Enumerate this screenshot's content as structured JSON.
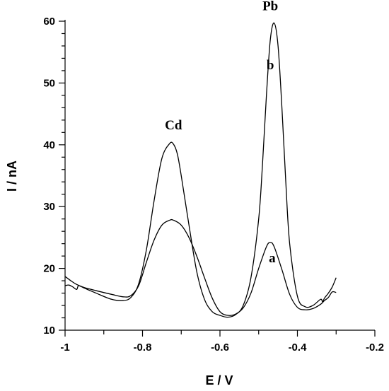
{
  "chart_data": {
    "type": "line",
    "xlabel": "E / V",
    "ylabel": "I / nA",
    "xlim": [
      -1.0,
      -0.2
    ],
    "ylim": [
      10,
      60
    ],
    "xticks": [
      -1.0,
      -0.8,
      -0.6,
      -0.4,
      -0.2
    ],
    "xtick_labels": [
      "-1",
      "-0.8",
      "-0.6",
      "-0.4",
      "-0.2"
    ],
    "yticks": [
      10,
      20,
      30,
      40,
      50,
      60
    ],
    "ytick_labels": [
      "10",
      "20",
      "30",
      "40",
      "50",
      "60"
    ],
    "grid": false,
    "series": [
      {
        "name": "a",
        "x": [
          -1.0,
          -0.985,
          -0.97,
          -0.95,
          -0.92,
          -0.88,
          -0.85,
          -0.83,
          -0.81,
          -0.79,
          -0.77,
          -0.75,
          -0.73,
          -0.72,
          -0.7,
          -0.68,
          -0.66,
          -0.64,
          -0.62,
          -0.6,
          -0.58,
          -0.56,
          -0.54,
          -0.52,
          -0.5,
          -0.48,
          -0.47,
          -0.46,
          -0.44,
          -0.42,
          -0.4,
          -0.38,
          -0.36,
          -0.34,
          -0.33,
          -0.32,
          -0.31,
          -0.3
        ],
        "y": [
          18.7,
          18.0,
          17.4,
          16.9,
          16.4,
          15.8,
          15.4,
          15.6,
          17.2,
          21.0,
          24.6,
          27.0,
          27.8,
          27.8,
          27.0,
          25.0,
          22.0,
          18.5,
          15.2,
          13.0,
          12.4,
          12.6,
          13.6,
          16.0,
          20.0,
          23.5,
          24.2,
          23.5,
          19.8,
          15.8,
          13.7,
          13.3,
          13.5,
          14.2,
          14.8,
          15.3,
          16.2,
          16.1
        ]
      },
      {
        "name": "b",
        "x": [
          -1.0,
          -0.99,
          -0.98,
          -0.97,
          -0.965,
          -0.95,
          -0.92,
          -0.88,
          -0.85,
          -0.83,
          -0.81,
          -0.79,
          -0.77,
          -0.75,
          -0.73,
          -0.72,
          -0.71,
          -0.7,
          -0.68,
          -0.66,
          -0.64,
          -0.62,
          -0.6,
          -0.58,
          -0.56,
          -0.54,
          -0.52,
          -0.5,
          -0.49,
          -0.48,
          -0.47,
          -0.46,
          -0.45,
          -0.44,
          -0.43,
          -0.42,
          -0.4,
          -0.38,
          -0.36,
          -0.34,
          -0.335,
          -0.33,
          -0.32,
          -0.31,
          -0.3
        ],
        "y": [
          17.2,
          17.3,
          17.0,
          16.6,
          17.2,
          16.8,
          16.0,
          15.0,
          14.8,
          15.3,
          17.5,
          23.0,
          31.0,
          37.8,
          40.2,
          40.1,
          38.5,
          35.0,
          27.0,
          19.5,
          15.0,
          13.0,
          12.4,
          12.1,
          12.5,
          14.0,
          18.5,
          28.0,
          37.0,
          48.0,
          57.0,
          59.7,
          56.0,
          46.0,
          34.0,
          24.0,
          15.5,
          13.8,
          14.0,
          15.0,
          14.6,
          15.2,
          16.0,
          17.0,
          18.5
        ]
      }
    ],
    "annotations": [
      {
        "text": "Cd",
        "x": -0.72,
        "y": 42.5
      },
      {
        "text": "Pb",
        "x": -0.47,
        "y": 61.8
      },
      {
        "text": "b",
        "x": -0.47,
        "y": 52.2
      },
      {
        "text": "a",
        "x": -0.465,
        "y": 21.0
      }
    ]
  }
}
